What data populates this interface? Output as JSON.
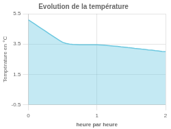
{
  "chart_data": {
    "type": "area",
    "title": "Evolution de la température",
    "xlabel": "heure par heure",
    "ylabel": "Température en °C",
    "x": [
      0.0,
      0.05,
      0.1,
      0.15,
      0.2,
      0.25,
      0.3,
      0.35,
      0.4,
      0.45,
      0.5,
      0.55,
      0.6,
      0.65,
      0.7,
      0.75,
      0.8,
      0.85,
      0.9,
      0.95,
      1.0,
      1.05,
      1.1,
      1.15,
      1.2,
      1.25,
      1.3,
      1.35,
      1.4,
      1.45,
      1.5,
      1.55,
      1.6,
      1.65,
      1.7,
      1.75,
      1.8,
      1.85,
      1.9,
      1.95,
      2.0
    ],
    "values": [
      5.1,
      4.95,
      4.8,
      4.65,
      4.5,
      4.35,
      4.2,
      4.05,
      3.9,
      3.75,
      3.62,
      3.55,
      3.5,
      3.48,
      3.47,
      3.46,
      3.46,
      3.45,
      3.45,
      3.45,
      3.45,
      3.44,
      3.43,
      3.41,
      3.39,
      3.37,
      3.35,
      3.32,
      3.3,
      3.27,
      3.25,
      3.22,
      3.2,
      3.17,
      3.15,
      3.12,
      3.1,
      3.07,
      3.05,
      3.02,
      3.0
    ],
    "color": "#6cc8e0",
    "xlim": [
      0,
      2
    ],
    "ylim": [
      -0.5,
      5.5
    ],
    "xticks": [
      0,
      1,
      2
    ],
    "yticks": [
      -0.5,
      1.5,
      3.5,
      5.5
    ],
    "grid": true
  }
}
